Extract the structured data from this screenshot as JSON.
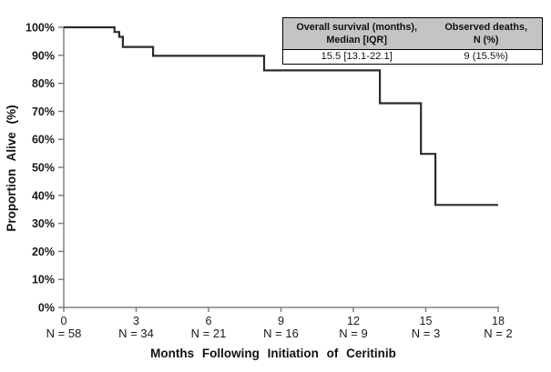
{
  "table": {
    "columns": [
      {
        "header_line1": "Overall survival (months),",
        "header_line2": "Median [IQR]",
        "value": "15.5 [13.1-22.1]"
      },
      {
        "header_line1": "Observed deaths,",
        "header_line2": "N (%)",
        "value": "9 (15.5%)"
      }
    ]
  },
  "chart_data": {
    "type": "line",
    "subtype": "kaplan-meier-step",
    "title": "",
    "xlabel": "Months Following Initiation of Ceritinib",
    "ylabel": "Proportion Alive (%)",
    "xlim": [
      0,
      18
    ],
    "ylim": [
      0,
      100
    ],
    "x_ticks": [
      {
        "value": 0,
        "label": "0"
      },
      {
        "value": 3,
        "label": "3"
      },
      {
        "value": 6,
        "label": "6"
      },
      {
        "value": 9,
        "label": "9"
      },
      {
        "value": 12,
        "label": "12"
      },
      {
        "value": 15,
        "label": "15"
      },
      {
        "value": 18,
        "label": "18"
      }
    ],
    "y_ticks": [
      {
        "value": 0,
        "label": "0%"
      },
      {
        "value": 10,
        "label": "10%"
      },
      {
        "value": 20,
        "label": "20%"
      },
      {
        "value": 30,
        "label": "30%"
      },
      {
        "value": 40,
        "label": "40%"
      },
      {
        "value": 50,
        "label": "50%"
      },
      {
        "value": 60,
        "label": "60%"
      },
      {
        "value": 70,
        "label": "70%"
      },
      {
        "value": 80,
        "label": "80%"
      },
      {
        "value": 90,
        "label": "90%"
      },
      {
        "value": 100,
        "label": "100%"
      }
    ],
    "at_risk_labels": [
      "N = 58",
      "N = 34",
      "N = 21",
      "N = 16",
      "N = 9",
      "N = 3",
      "N = 2"
    ],
    "steps": [
      [
        0,
        100
      ],
      [
        2.1,
        100
      ],
      [
        2.1,
        98.3
      ],
      [
        2.3,
        98.3
      ],
      [
        2.3,
        96.6
      ],
      [
        2.45,
        96.6
      ],
      [
        2.45,
        93.0
      ],
      [
        3.7,
        93.0
      ],
      [
        3.7,
        89.8
      ],
      [
        8.3,
        89.8
      ],
      [
        8.3,
        84.6
      ],
      [
        13.1,
        84.6
      ],
      [
        13.1,
        72.9
      ],
      [
        14.8,
        72.9
      ],
      [
        14.8,
        54.8
      ],
      [
        15.4,
        54.8
      ],
      [
        15.4,
        36.6
      ],
      [
        18,
        36.6
      ]
    ],
    "line_color": "#2b2b2b",
    "axis_color": "#808080",
    "grid": false,
    "legend": "none"
  }
}
